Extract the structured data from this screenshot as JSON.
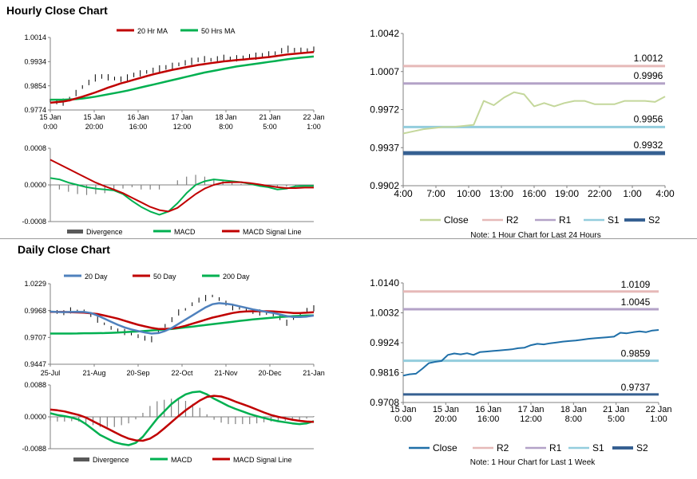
{
  "sections": {
    "hourly_title": "Hourly Close Chart",
    "daily_title": "Daily Close Chart"
  },
  "colors": {
    "close_light": "#c4d79b",
    "r2": "#e6b9b8",
    "r1": "#b3a2c7",
    "s1": "#93cddd",
    "s2": "#366092",
    "red_line": "#c00000",
    "green_line": "#00b050",
    "blue_ma": "#4f81bd",
    "close_blue": "#1f6fa8"
  },
  "chart_data": [
    {
      "id": "hourly-price",
      "type": "line",
      "legend": [
        "20 Hr MA",
        "50 Hrs MA"
      ],
      "ylim": [
        0.9774,
        1.0014
      ],
      "y_ticks": [
        "1.0014",
        "0.9934",
        "0.9854",
        "0.9774"
      ],
      "x_labels": [
        [
          "15 Jan",
          "0:00"
        ],
        [
          "15 Jan",
          "20:00"
        ],
        [
          "16 Jan",
          "16:00"
        ],
        [
          "17 Jan",
          "12:00"
        ],
        [
          "18 Jan",
          "8:00"
        ],
        [
          "21 Jan",
          "5:00"
        ],
        [
          "22 Jan",
          "1:00"
        ]
      ],
      "series": [
        {
          "name": "Close",
          "values": [
            0.9805,
            0.9802,
            0.98,
            0.981,
            0.983,
            0.985,
            0.9865,
            0.988,
            0.9885,
            0.9882,
            0.9878,
            0.9876,
            0.988,
            0.989,
            0.9895,
            0.99,
            0.9905,
            0.991,
            0.9915,
            0.992,
            0.9925,
            0.993,
            0.9935,
            0.994,
            0.9942,
            0.994,
            0.9943,
            0.9945,
            0.9943,
            0.9945,
            0.9948,
            0.995,
            0.9952,
            0.9955,
            0.9958,
            0.9962,
            0.997,
            0.9975,
            0.9972,
            0.997,
            0.9972,
            0.9975
          ]
        },
        {
          "name": "20 Hr MA",
          "values": [
            0.9798,
            0.98,
            0.9802,
            0.9806,
            0.9812,
            0.9818,
            0.9825,
            0.9832,
            0.984,
            0.9848,
            0.9855,
            0.9862,
            0.9868,
            0.9874,
            0.988,
            0.9886,
            0.9892,
            0.9897,
            0.9902,
            0.9907,
            0.9911,
            0.9915,
            0.9919,
            0.9923,
            0.9926,
            0.9929,
            0.9932,
            0.9935,
            0.9937,
            0.9939,
            0.9941,
            0.9943,
            0.9945,
            0.9947,
            0.9949,
            0.9952,
            0.9955,
            0.9958,
            0.996,
            0.9962,
            0.9964,
            0.9966
          ]
        },
        {
          "name": "50 Hrs MA",
          "values": [
            0.9808,
            0.9808,
            0.9808,
            0.9809,
            0.981,
            0.9812,
            0.9815,
            0.9818,
            0.9822,
            0.9826,
            0.983,
            0.9834,
            0.9838,
            0.9843,
            0.9848,
            0.9853,
            0.9858,
            0.9863,
            0.9868,
            0.9873,
            0.9878,
            0.9883,
            0.9888,
            0.9893,
            0.9898,
            0.9902,
            0.9906,
            0.991,
            0.9914,
            0.9918,
            0.9921,
            0.9924,
            0.9927,
            0.993,
            0.9933,
            0.9936,
            0.9939,
            0.9942,
            0.9945,
            0.9947,
            0.9949,
            0.9951
          ]
        }
      ]
    },
    {
      "id": "hourly-macd",
      "type": "line",
      "legend": [
        "Divergence",
        "MACD",
        "MACD Signal Line"
      ],
      "ylim": [
        -0.0008,
        0.0008
      ],
      "y_ticks": [
        "0.0008",
        "0.0000",
        "-0.0008"
      ],
      "series": [
        {
          "name": "MACD",
          "values": [
            0.00015,
            0.00012,
            5e-05,
            0.0,
            -5e-05,
            -8e-05,
            -0.0001,
            -0.00012,
            -0.0002,
            -0.00035,
            -0.00048,
            -0.00058,
            -0.00065,
            -0.00058,
            -0.0004,
            -0.00018,
            0.0,
            8e-05,
            0.00012,
            0.0001,
            8e-05,
            6e-05,
            2e-05,
            -2e-05,
            -5e-05,
            -0.0001,
            -8e-05,
            -3e-05,
            -2e-05,
            -2e-05
          ]
        },
        {
          "name": "MACD Signal Line",
          "values": [
            0.00055,
            0.00045,
            0.00035,
            0.00025,
            0.00015,
            5e-05,
            -3e-05,
            -0.0001,
            -0.00018,
            -0.00028,
            -0.00038,
            -0.00048,
            -0.00055,
            -0.00058,
            -0.0005,
            -0.00035,
            -0.0002,
            -8e-05,
            0.0,
            5e-05,
            6e-05,
            6e-05,
            4e-05,
            1e-05,
            -2e-05,
            -5e-05,
            -7e-05,
            -7e-05,
            -6e-05,
            -6e-05
          ]
        },
        {
          "name": "Divergence",
          "values": [
            -5e-05,
            -0.0001,
            -0.00015,
            -0.0002,
            -0.00022,
            -0.0002,
            -0.00018,
            -0.00012,
            -8e-05,
            -5e-05,
            -0.0001,
            -0.0001,
            -0.0001,
            0.0,
            0.0001,
            0.00018,
            0.00022,
            0.00018,
            0.00012,
            8e-05,
            4e-05,
            2e-05,
            0.0,
            -2e-05,
            -4e-05,
            -6e-05,
            -4e-05,
            -2e-05,
            -1e-05,
            0.0
          ]
        }
      ]
    },
    {
      "id": "hourly-levels",
      "type": "line",
      "legend": [
        "Close",
        "R2",
        "R1",
        "S1",
        "S2"
      ],
      "note": "Note: 1 Hour Chart for Last 24 Hours",
      "ylim": [
        0.9902,
        1.0042
      ],
      "y_ticks": [
        "1.0042",
        "1.0007",
        "0.9972",
        "0.9937",
        "0.9902"
      ],
      "x_labels": [
        "4:00",
        "7:00",
        "10:00",
        "13:00",
        "16:00",
        "19:00",
        "22:00",
        "1:00",
        "4:00"
      ],
      "levels": {
        "R2": 1.0012,
        "R1": 0.9996,
        "S1": 0.9956,
        "S2": 0.9932
      },
      "level_labels": {
        "R2": "1.0012",
        "R1": "0.9996",
        "S1": "0.9956",
        "S2": "0.9932"
      },
      "series": [
        {
          "name": "Close",
          "values": [
            0.995,
            0.9952,
            0.9954,
            0.9955,
            0.9956,
            0.9956,
            0.9957,
            0.9958,
            0.998,
            0.9976,
            0.9983,
            0.9988,
            0.9986,
            0.9975,
            0.9978,
            0.9975,
            0.9978,
            0.998,
            0.998,
            0.9977,
            0.9977,
            0.9977,
            0.998,
            0.998,
            0.998,
            0.9979,
            0.9984
          ]
        }
      ]
    },
    {
      "id": "daily-price",
      "type": "line",
      "legend": [
        "20 Day",
        "50 Day",
        "200 Day"
      ],
      "ylim": [
        0.9447,
        1.0229
      ],
      "y_ticks": [
        "1.0229",
        "0.9968",
        "0.9707",
        "0.9447"
      ],
      "x_labels": [
        "25-Jul",
        "21-Aug",
        "20-Sep",
        "22-Oct",
        "21-Nov",
        "20-Dec",
        "21-Jan"
      ],
      "series": [
        {
          "name": "Close",
          "values": [
            0.996,
            0.9955,
            0.9948,
            0.997,
            0.9965,
            0.996,
            0.993,
            0.988,
            0.984,
            0.98,
            0.977,
            0.976,
            0.974,
            0.972,
            0.97,
            0.969,
            0.976,
            0.982,
            0.988,
            0.995,
            0.998,
            1.003,
            1.007,
            1.009,
            1.011,
            1.008,
            1.004,
            1.0,
            0.999,
            0.997,
            0.996,
            0.995,
            0.994,
            0.993,
            0.99,
            0.985,
            0.989,
            0.993,
            0.997,
            0.999
          ]
        },
        {
          "name": "20 Day",
          "values": [
            0.9958,
            0.9955,
            0.9953,
            0.9955,
            0.9956,
            0.9955,
            0.9945,
            0.992,
            0.989,
            0.986,
            0.983,
            0.9805,
            0.9785,
            0.977,
            0.9755,
            0.9745,
            0.975,
            0.977,
            0.98,
            0.984,
            0.988,
            0.992,
            0.996,
            1.0,
            1.003,
            1.004,
            1.0035,
            1.0025,
            1.001,
            0.9995,
            0.998,
            0.9968,
            0.9955,
            0.9945,
            0.993,
            0.9915,
            0.9905,
            0.9905,
            0.991,
            0.992
          ]
        },
        {
          "name": "50 Day",
          "values": [
            0.9955,
            0.9955,
            0.9955,
            0.9952,
            0.995,
            0.9948,
            0.9942,
            0.9935,
            0.992,
            0.9905,
            0.989,
            0.987,
            0.985,
            0.983,
            0.9815,
            0.98,
            0.979,
            0.979,
            0.9795,
            0.9805,
            0.982,
            0.984,
            0.986,
            0.988,
            0.99,
            0.9915,
            0.993,
            0.9945,
            0.9955,
            0.996,
            0.9962,
            0.9962,
            0.9962,
            0.996,
            0.9955,
            0.995,
            0.9945,
            0.9945,
            0.9948,
            0.9952
          ]
        },
        {
          "name": "200 Day",
          "values": [
            0.9745,
            0.9745,
            0.9745,
            0.9745,
            0.9746,
            0.9748,
            0.9748,
            0.9749,
            0.975,
            0.9752,
            0.9755,
            0.9758,
            0.9762,
            0.9765,
            0.977,
            0.9775,
            0.978,
            0.9785,
            0.979,
            0.9798,
            0.9805,
            0.9812,
            0.982,
            0.9828,
            0.9836,
            0.9844,
            0.9852,
            0.986,
            0.9868,
            0.9875,
            0.9882,
            0.9888,
            0.9894,
            0.99,
            0.9905,
            0.991,
            0.9915,
            0.9918,
            0.992,
            0.9922
          ]
        }
      ]
    },
    {
      "id": "daily-macd",
      "type": "line",
      "legend": [
        "Divergence",
        "MACD",
        "MACD Signal Line"
      ],
      "ylim": [
        -0.0088,
        0.0088
      ],
      "y_ticks": [
        "0.0088",
        "0.0000",
        "-0.0088"
      ],
      "series": [
        {
          "name": "MACD",
          "values": [
            0.001,
            0.0005,
            0.0002,
            -0.0002,
            -0.0008,
            -0.002,
            -0.0035,
            -0.005,
            -0.006,
            -0.007,
            -0.0075,
            -0.0078,
            -0.0072,
            -0.0055,
            -0.003,
            -0.0005,
            0.0015,
            0.0035,
            0.005,
            0.0062,
            0.0068,
            0.007,
            0.0062,
            0.005,
            0.004,
            0.003,
            0.0022,
            0.0015,
            0.0008,
            0.0002,
            -0.0003,
            -0.0008,
            -0.0012,
            -0.0015,
            -0.0018,
            -0.002,
            -0.0018,
            -0.0012
          ]
        },
        {
          "name": "MACD Signal Line",
          "values": [
            0.002,
            0.0018,
            0.0015,
            0.001,
            0.0005,
            -0.0002,
            -0.0012,
            -0.0022,
            -0.0032,
            -0.0042,
            -0.0052,
            -0.006,
            -0.0065,
            -0.0066,
            -0.006,
            -0.0048,
            -0.0032,
            -0.0015,
            0.0002,
            0.0018,
            0.0032,
            0.0045,
            0.0055,
            0.0058,
            0.0056,
            0.005,
            0.0042,
            0.0035,
            0.0028,
            0.002,
            0.0012,
            0.0005,
            0.0,
            -0.0004,
            -0.0008,
            -0.0011,
            -0.0013,
            -0.0014
          ]
        },
        {
          "name": "Divergence",
          "values": [
            -0.001,
            -0.0013,
            -0.0013,
            -0.0012,
            -0.0013,
            -0.0018,
            -0.0023,
            -0.0028,
            -0.0028,
            -0.0028,
            -0.0023,
            -0.0018,
            -0.0007,
            0.0011,
            0.003,
            0.0043,
            0.0047,
            0.005,
            0.0048,
            0.0044,
            0.0036,
            0.0025,
            0.0007,
            -0.0008,
            -0.0016,
            -0.002,
            -0.002,
            -0.002,
            -0.002,
            -0.0018,
            -0.0015,
            -0.0013,
            -0.0012,
            -0.0011,
            -0.001,
            -0.0009,
            -0.0005,
            0.0002
          ]
        }
      ]
    },
    {
      "id": "daily-levels",
      "type": "line",
      "legend": [
        "Close",
        "R2",
        "R1",
        "S1",
        "S2"
      ],
      "note": "Note: 1 Hour Chart for Last 1 Week",
      "ylim": [
        0.9708,
        1.014
      ],
      "y_ticks": [
        "1.0140",
        "1.0032",
        "0.9924",
        "0.9816",
        "0.9708"
      ],
      "x_labels": [
        [
          "15 Jan",
          "0:00"
        ],
        [
          "15 Jan",
          "20:00"
        ],
        [
          "16 Jan",
          "16:00"
        ],
        [
          "17 Jan",
          "12:00"
        ],
        [
          "18 Jan",
          "8:00"
        ],
        [
          "21 Jan",
          "5:00"
        ],
        [
          "22 Jan",
          "1:00"
        ]
      ],
      "levels": {
        "R2": 1.0109,
        "R1": 1.0045,
        "S1": 0.9859,
        "S2": 0.9737
      },
      "level_labels": {
        "R2": "1.0109",
        "R1": "1.0045",
        "S1": "0.9859",
        "S2": "0.9737"
      },
      "series": [
        {
          "name": "Close",
          "values": [
            0.9805,
            0.981,
            0.9812,
            0.983,
            0.985,
            0.9855,
            0.9858,
            0.988,
            0.9885,
            0.9882,
            0.9886,
            0.988,
            0.989,
            0.9892,
            0.9894,
            0.9896,
            0.9898,
            0.99,
            0.9904,
            0.9906,
            0.9915,
            0.992,
            0.9918,
            0.9922,
            0.9925,
            0.9928,
            0.993,
            0.9932,
            0.9935,
            0.9938,
            0.994,
            0.9942,
            0.9944,
            0.9946,
            0.996,
            0.9958,
            0.9962,
            0.9965,
            0.9962,
            0.9968,
            0.997
          ]
        }
      ]
    }
  ]
}
